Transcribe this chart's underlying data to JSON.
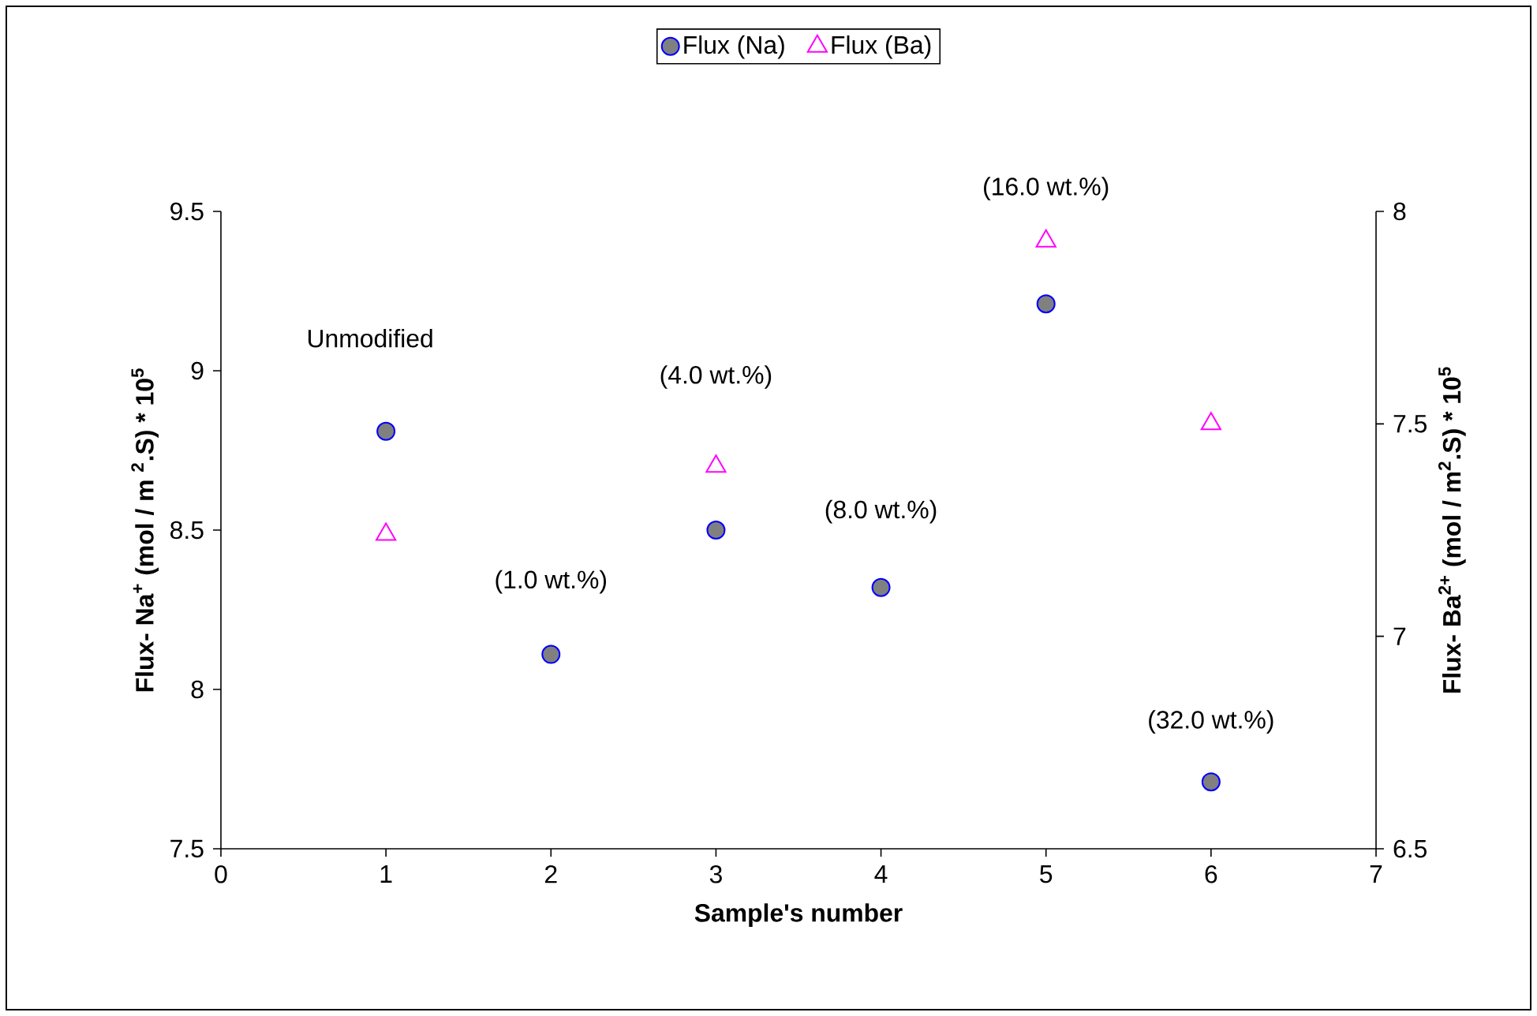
{
  "chart_data": {
    "type": "scatter",
    "xlabel": "Sample's number",
    "ylabel": "Flux- Na$^{+}$ (mol / m  $^{2}$.S) * 10$^{5}$",
    "y2label": "Flux- Ba$^{2+}$ (mol / m$^{2}$.S) * 10$^{5}$",
    "xlim": [
      0,
      7
    ],
    "xticks": [
      0,
      1,
      2,
      3,
      4,
      5,
      6,
      7
    ],
    "ylim": [
      7.5,
      9.5
    ],
    "yticks": [
      7.5,
      8,
      8.5,
      9,
      9.5
    ],
    "y2lim": [
      6.5,
      8
    ],
    "y2ticks": [
      6.5,
      7,
      7.5,
      8
    ],
    "legend": "top",
    "series": [
      {
        "name": "Flux (Na)",
        "color": "#808080",
        "marker": "circle",
        "x": [
          1,
          2,
          3,
          4,
          5,
          6
        ],
        "values": [
          8.81,
          8.11,
          8.5,
          8.32,
          9.21,
          7.71
        ]
      },
      {
        "name": "Flux (Ba)",
        "color": "#ff00ff",
        "marker": "triangle",
        "axis": "y2",
        "x": [
          1,
          3,
          5,
          6
        ],
        "values": [
          7.24,
          7.4,
          7.93,
          7.5
        ]
      }
    ],
    "annotations": [
      "Unmodified",
      "(1.0 wt.%)",
      "(4.0 wt.%)",
      "(8.0 wt.%)",
      "(16.0 wt.%)",
      "(32.0 wt.%)"
    ]
  }
}
